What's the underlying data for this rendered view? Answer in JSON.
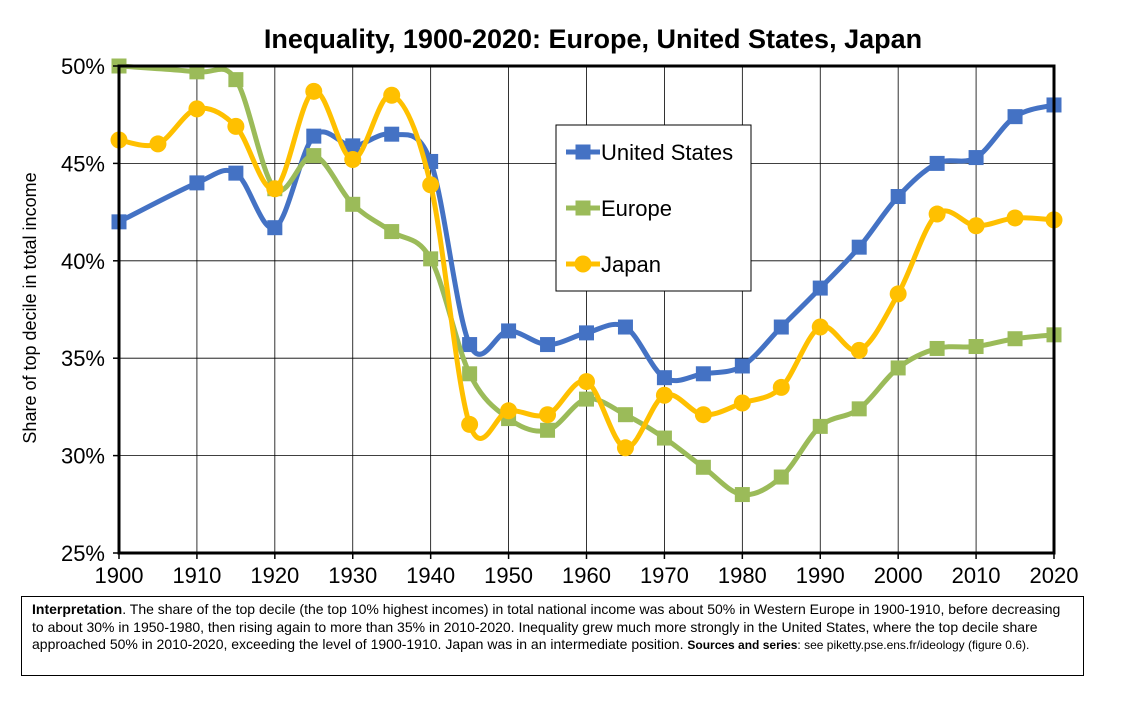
{
  "chart_data": {
    "type": "line",
    "title": "Inequality, 1900-2020: Europe, United States, Japan",
    "xlabel": "",
    "ylabel": "Share of top decile in total income",
    "xlim": [
      1900,
      2020
    ],
    "ylim": [
      0.25,
      0.5
    ],
    "x_ticks": [
      "1900",
      "1910",
      "1920",
      "1930",
      "1940",
      "1950",
      "1960",
      "1970",
      "1980",
      "1990",
      "2000",
      "2010",
      "2020"
    ],
    "y_ticks": [
      "25%",
      "30%",
      "35%",
      "40%",
      "45%",
      "50%"
    ],
    "grid": "horizontal",
    "legend_position": "top-center",
    "series": [
      {
        "name": "United States",
        "color": "#4472C4",
        "marker": "square",
        "x": [
          1900,
          1910,
          1915,
          1920,
          1925,
          1930,
          1935,
          1940,
          1945,
          1950,
          1955,
          1960,
          1965,
          1970,
          1975,
          1980,
          1985,
          1990,
          1995,
          2000,
          2005,
          2010,
          2015,
          2020
        ],
        "y": [
          0.42,
          0.44,
          0.445,
          0.417,
          0.464,
          0.459,
          0.465,
          0.451,
          0.357,
          0.364,
          0.357,
          0.363,
          0.366,
          0.34,
          0.342,
          0.346,
          0.366,
          0.386,
          0.407,
          0.433,
          0.45,
          0.453,
          0.474,
          0.48
        ]
      },
      {
        "name": "Europe",
        "color": "#9BBB59",
        "marker": "square",
        "x": [
          1900,
          1910,
          1915,
          1920,
          1925,
          1930,
          1935,
          1940,
          1945,
          1950,
          1955,
          1960,
          1965,
          1970,
          1975,
          1980,
          1985,
          1990,
          1995,
          2000,
          2005,
          2010,
          2015,
          2020
        ],
        "y": [
          0.5,
          0.497,
          0.493,
          0.437,
          0.454,
          0.429,
          0.415,
          0.401,
          0.342,
          0.319,
          0.313,
          0.329,
          0.321,
          0.309,
          0.294,
          0.28,
          0.289,
          0.315,
          0.324,
          0.345,
          0.355,
          0.356,
          0.36,
          0.362
        ]
      },
      {
        "name": "Japan",
        "color": "#FFC000",
        "marker": "circle",
        "x": [
          1900,
          1905,
          1910,
          1915,
          1920,
          1925,
          1930,
          1935,
          1940,
          1945,
          1950,
          1955,
          1960,
          1965,
          1970,
          1975,
          1980,
          1985,
          1990,
          1995,
          2000,
          2005,
          2010,
          2015,
          2020
        ],
        "y": [
          0.462,
          0.46,
          0.478,
          0.469,
          0.437,
          0.487,
          0.452,
          0.485,
          0.439,
          0.316,
          0.323,
          0.321,
          0.338,
          0.304,
          0.331,
          0.321,
          0.327,
          0.335,
          0.366,
          0.354,
          0.383,
          0.424,
          0.418,
          0.422,
          0.421
        ]
      }
    ]
  },
  "note": {
    "interp_label": "Interpretation",
    "interp_text": ". The share of the top decile (the top 10% highest incomes) in total national income was about 50% in Western Europe in 1900-1910, before decreasing to about 30% in 1950-1980, then rising again to more than 35% in 2010-2020. Inequality grew much more strongly in the United States, where the top decile share approached 50% in 2010-2020, exceeding the level of 1900-1910. Japan was in an intermediate position.",
    "sources_label": "Sources and series",
    "sources_text": ": see piketty.pse.ens.fr/ideology (figure 0.6)."
  }
}
